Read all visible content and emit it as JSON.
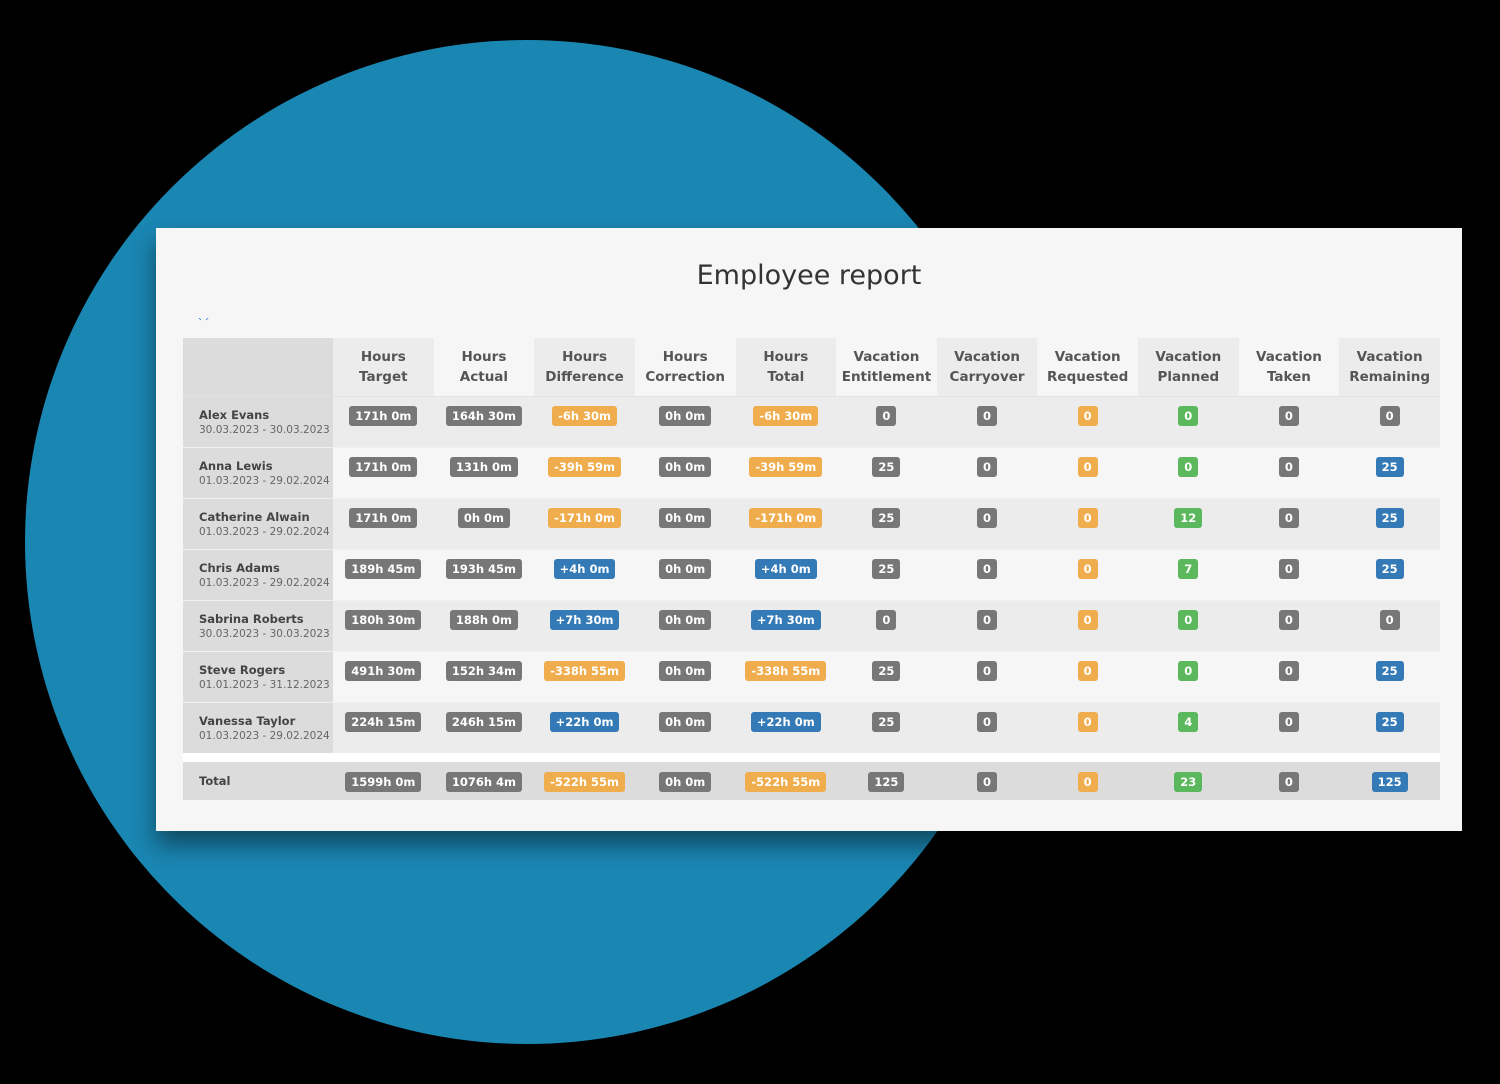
{
  "page": {
    "title": "Employee report",
    "cut_link_text": "‹ ›"
  },
  "colors": {
    "background": "#000000",
    "circle": "#1a86b2",
    "card": "#f6f6f6",
    "badge_gray": "#777777",
    "badge_orange": "#f0ad4e",
    "badge_blue": "#337ab7",
    "badge_green": "#5cb85c"
  },
  "table": {
    "columns": [
      {
        "line1": "Hours",
        "line2": "Target"
      },
      {
        "line1": "Hours",
        "line2": "Actual"
      },
      {
        "line1": "Hours",
        "line2": "Difference"
      },
      {
        "line1": "Hours",
        "line2": "Correction"
      },
      {
        "line1": "Hours",
        "line2": "Total"
      },
      {
        "line1": "Vacation",
        "line2": "Entitlement"
      },
      {
        "line1": "Vacation",
        "line2": "Carryover"
      },
      {
        "line1": "Vacation",
        "line2": "Requested"
      },
      {
        "line1": "Vacation",
        "line2": "Planned"
      },
      {
        "line1": "Vacation",
        "line2": "Taken"
      },
      {
        "line1": "Vacation",
        "line2": "Remaining"
      }
    ],
    "rows": [
      {
        "name": "Alex Evans",
        "range": "30.03.2023 - 30.03.2023",
        "values": [
          "171h 0m",
          "164h 30m",
          "-6h 30m",
          "0h 0m",
          "-6h 30m",
          "0",
          "0",
          "0",
          "0",
          "0",
          "0"
        ],
        "colors": [
          "gray",
          "gray",
          "orange",
          "gray",
          "orange",
          "gray",
          "gray",
          "orange",
          "green",
          "gray",
          "gray"
        ]
      },
      {
        "name": "Anna Lewis",
        "range": "01.03.2023 - 29.02.2024",
        "values": [
          "171h 0m",
          "131h 0m",
          "-39h 59m",
          "0h 0m",
          "-39h 59m",
          "25",
          "0",
          "0",
          "0",
          "0",
          "25"
        ],
        "colors": [
          "gray",
          "gray",
          "orange",
          "gray",
          "orange",
          "gray",
          "gray",
          "orange",
          "green",
          "gray",
          "blue"
        ]
      },
      {
        "name": "Catherine Alwain",
        "range": "01.03.2023 - 29.02.2024",
        "values": [
          "171h 0m",
          "0h 0m",
          "-171h 0m",
          "0h 0m",
          "-171h 0m",
          "25",
          "0",
          "0",
          "12",
          "0",
          "25"
        ],
        "colors": [
          "gray",
          "gray",
          "orange",
          "gray",
          "orange",
          "gray",
          "gray",
          "orange",
          "green",
          "gray",
          "blue"
        ]
      },
      {
        "name": "Chris Adams",
        "range": "01.03.2023 - 29.02.2024",
        "values": [
          "189h 45m",
          "193h 45m",
          "+4h 0m",
          "0h 0m",
          "+4h 0m",
          "25",
          "0",
          "0",
          "7",
          "0",
          "25"
        ],
        "colors": [
          "gray",
          "gray",
          "blue",
          "gray",
          "blue",
          "gray",
          "gray",
          "orange",
          "green",
          "gray",
          "blue"
        ]
      },
      {
        "name": "Sabrina Roberts",
        "range": "30.03.2023 - 30.03.2023",
        "values": [
          "180h 30m",
          "188h 0m",
          "+7h 30m",
          "0h 0m",
          "+7h 30m",
          "0",
          "0",
          "0",
          "0",
          "0",
          "0"
        ],
        "colors": [
          "gray",
          "gray",
          "blue",
          "gray",
          "blue",
          "gray",
          "gray",
          "orange",
          "green",
          "gray",
          "gray"
        ]
      },
      {
        "name": "Steve Rogers",
        "range": "01.01.2023 - 31.12.2023",
        "values": [
          "491h 30m",
          "152h 34m",
          "-338h 55m",
          "0h 0m",
          "-338h 55m",
          "25",
          "0",
          "0",
          "0",
          "0",
          "25"
        ],
        "colors": [
          "gray",
          "gray",
          "orange",
          "gray",
          "orange",
          "gray",
          "gray",
          "orange",
          "green",
          "gray",
          "blue"
        ]
      },
      {
        "name": "Vanessa Taylor",
        "range": "01.03.2023 - 29.02.2024",
        "values": [
          "224h 15m",
          "246h 15m",
          "+22h 0m",
          "0h 0m",
          "+22h 0m",
          "25",
          "0",
          "0",
          "4",
          "0",
          "25"
        ],
        "colors": [
          "gray",
          "gray",
          "blue",
          "gray",
          "blue",
          "gray",
          "gray",
          "orange",
          "green",
          "gray",
          "blue"
        ]
      }
    ],
    "total": {
      "label": "Total",
      "values": [
        "1599h 0m",
        "1076h 4m",
        "-522h 55m",
        "0h 0m",
        "-522h 55m",
        "125",
        "0",
        "0",
        "23",
        "0",
        "125"
      ],
      "colors": [
        "gray",
        "gray",
        "orange",
        "gray",
        "orange",
        "gray",
        "gray",
        "orange",
        "green",
        "gray",
        "blue"
      ]
    }
  }
}
